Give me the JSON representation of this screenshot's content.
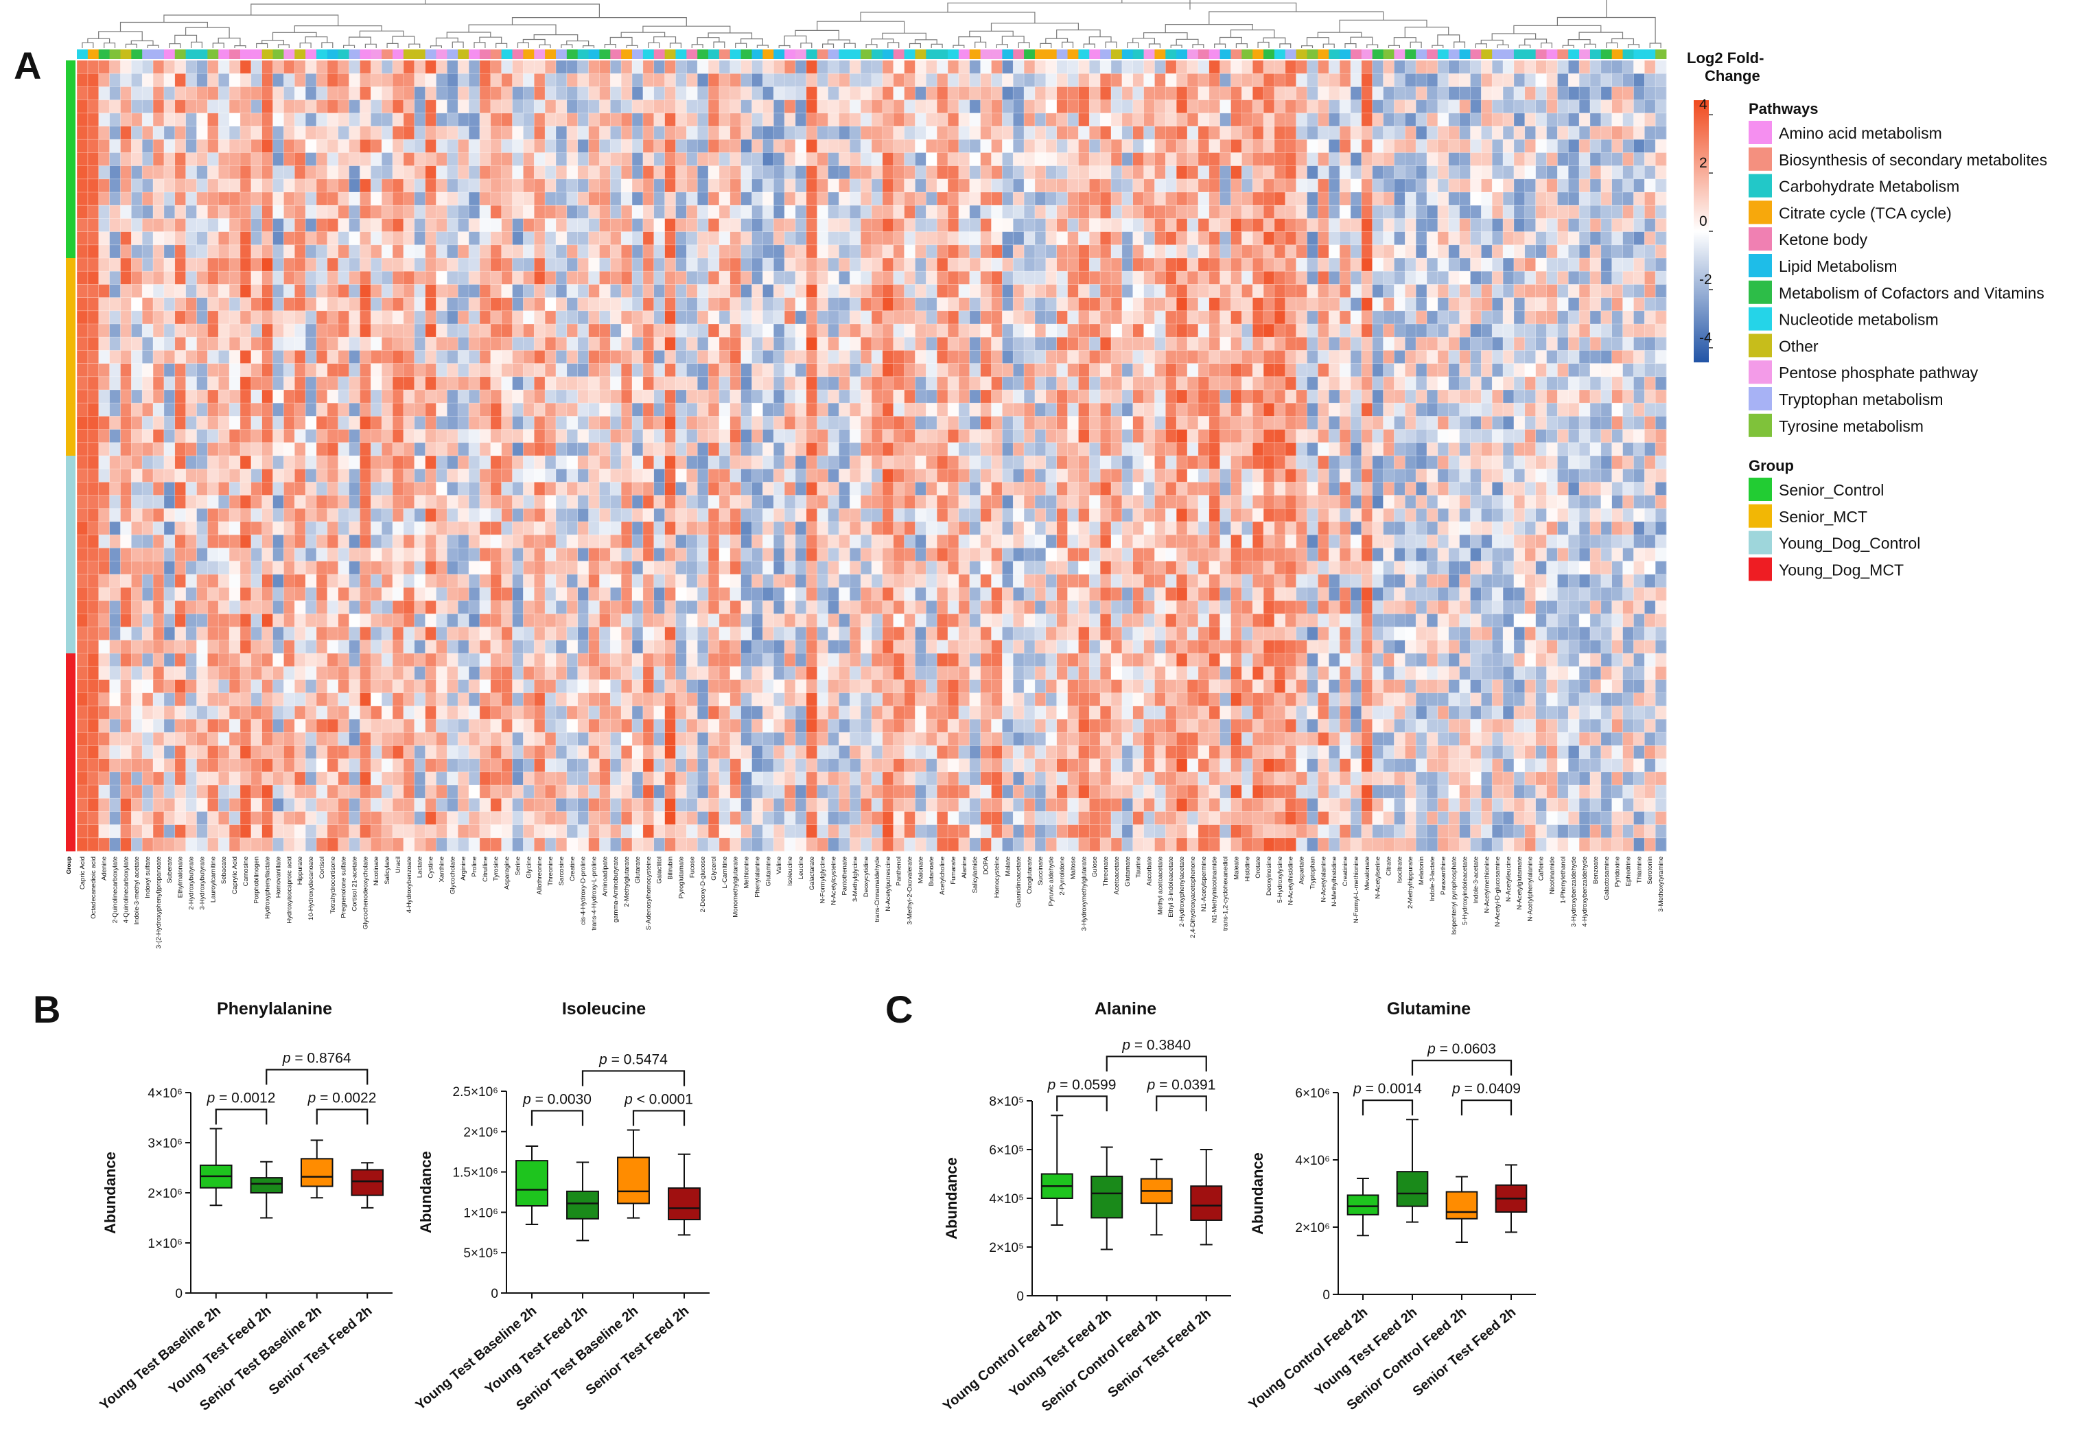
{
  "panel_labels": [
    "A",
    "B",
    "C"
  ],
  "chart_data": [
    {
      "type": "heatmap",
      "panel": "A",
      "colorbar": {
        "title": "Log2 Fold-Change",
        "ticks": [
          4,
          2,
          0,
          -2,
          -4
        ],
        "range": [
          -4.5,
          4.5
        ],
        "low_color": "#2154a6",
        "mid_color": "#ffffff",
        "high_color": "#f04a1e"
      },
      "rows_per_group": 15,
      "group_row_label": "Group",
      "groups": [
        {
          "name": "Senior_Control",
          "color": "#22cc33"
        },
        {
          "name": "Senior_MCT",
          "color": "#f2b705"
        },
        {
          "name": "Young_Dog_Control",
          "color": "#9ed6db"
        },
        {
          "name": "Young_Dog_MCT",
          "color": "#ee1d23"
        }
      ],
      "pathways_title": "Pathways",
      "group_title": "Group",
      "pathways": [
        {
          "name": "Amino acid metabolism",
          "color": "#f58ff0"
        },
        {
          "name": "Biosynthesis of secondary metabolites",
          "color": "#f4907f"
        },
        {
          "name": "Carbohydrate Metabolism",
          "color": "#22c8c8"
        },
        {
          "name": "Citrate cycle (TCA cycle)",
          "color": "#f7a80c"
        },
        {
          "name": "Ketone body",
          "color": "#f080b2"
        },
        {
          "name": "Lipid Metabolism",
          "color": "#1ebde8"
        },
        {
          "name": "Metabolism of Cofactors and Vitamins",
          "color": "#2dbd48"
        },
        {
          "name": "Nucleotide metabolism",
          "color": "#25d4e8"
        },
        {
          "name": "Other",
          "color": "#c7bd1b"
        },
        {
          "name": "Pentose phosphate pathway",
          "color": "#f39be8"
        },
        {
          "name": "Tryptophan metabolism",
          "color": "#a7b2f5"
        },
        {
          "name": "Tyrosine metabolism",
          "color": "#7fc23a"
        }
      ],
      "metabolites": [
        "Capric Acid",
        "Octadecanedioic acid",
        "Adenine",
        "2-Quinolinecarboxylate",
        "4-Quinolinecarboxylate",
        "Indole-3-methyl acetate",
        "Indoxyl sulfate",
        "3-(2-Hydroxyphenyl)propanoate",
        "Suberate",
        "Ethylmalonate",
        "2-Hydroxybutyrate",
        "3-Hydroxybutyrate",
        "Lauroylcarnitine",
        "Sebacate",
        "Caprylic Acid",
        "Carnosine",
        "Porphobilinogen",
        "Hydroxyphenyllactate",
        "Homovanillate",
        "Hydroxyisocaproic acid",
        "Hippurate",
        "10-Hydroxydecanoate",
        "Cortisol",
        "Tetrahydrocortisone",
        "Pregnenolone sulfate",
        "Cortisol 21-acetate",
        "Glycochenodeoxycholate",
        "Nicotinate",
        "Salicylate",
        "Uracil",
        "4-Hydroxybenzoate",
        "Lactate",
        "Cystine",
        "Xanthine",
        "Glycocholate",
        "Arginine",
        "Proline",
        "Citrulline",
        "Tyrosine",
        "Asparagine",
        "Serine",
        "Glycine",
        "Allothreonine",
        "Threonine",
        "Sarcosine",
        "Creatine",
        "cis-4-Hydroxy-D-proline",
        "trans-4-Hydroxy-L-proline",
        "Aminoadipate",
        "gamma-Aminobutyrate",
        "2-Methylglutarate",
        "Glutarate",
        "S-Adenosylhomocysteine",
        "Galactitol",
        "Bilirubin",
        "Pyroglutamate",
        "Fucose",
        "2-Deoxy-D-glucose",
        "Glycerol",
        "L-Carnitine",
        "Monomethylglutarate",
        "Methionine",
        "Phenylalanine",
        "Glutamine",
        "Valine",
        "Isoleucine",
        "Leucine",
        "Galactarate",
        "N-Formylglycine",
        "N-Acetylcysteine",
        "Pantothenate",
        "3-Methylglycine",
        "Deoxycytidine",
        "trans-Cinnamaldehyde",
        "N-Acetylputrescine",
        "Panthenol",
        "3-Methyl-2-Oxovalerate",
        "Malonate",
        "Butanoate",
        "Acetylcholine",
        "Fumarate",
        "Alanine",
        "Salicylamide",
        "DOPA",
        "Homocysteine",
        "Malate",
        "Guanidinoacetate",
        "Oxoglutarate",
        "Succinate",
        "Pyruvic aldehyde",
        "2-Pyrrolidone",
        "Maltose",
        "3-Hydroxymethylglutarate",
        "Gulose",
        "Threonate",
        "Acetoacetate",
        "Glutamate",
        "Taurine",
        "Ascorbate",
        "Methyl acetoacetate",
        "Ethyl 3-indoleacetate",
        "2-Hydroxyphenylacetate",
        "2,4-Dihydroxyacetophenone",
        "N1-Acetylspermine",
        "N1-Methylnicotinamide",
        "trans-1,2-cyclohexanediol",
        "Maleate",
        "Histidine",
        "Orotate",
        "Deoxyinosine",
        "5-Hydroxylysine",
        "N-Acetylhistidine",
        "Aspartate",
        "Tryptophan",
        "N-Acetylalanine",
        "N-Methylhistidine",
        "Creatinine",
        "N-Formyl-L-methionine",
        "Mevalonate",
        "N-Acetylserine",
        "Citrate",
        "Isocitrate",
        "2-Methylhippurate",
        "Melatonin",
        "Indole-3-lactate",
        "Paraxanthine",
        "Isopentenyl pyrophosphate",
        "5-Hydroxyindoleacetate",
        "Indole-3-acetate",
        "N-Acetylmethionine",
        "N-Acetyl-D-glucosamine",
        "N-Acetylleucine",
        "N-Acetylglutamate",
        "N-Acetylphenylalanine",
        "Caffeine",
        "Nicotinamide",
        "1-Phenylethanol",
        "3-Hydroxybenzaldehyde",
        "4-Hydroxybenzaldehyde",
        "Benzoate",
        "Galactosamine",
        "Pyridoxine",
        "Ephedrine",
        "Thiamine",
        "Serotonin",
        "3-Methoxytyramine"
      ]
    },
    {
      "type": "box",
      "panel": "B",
      "title": "Phenylalanine",
      "ylabel": "Abundance",
      "ylim": [
        0,
        4000000
      ],
      "y_ticks": [
        {
          "v": 0,
          "t": "0"
        },
        {
          "v": 1000000,
          "t": "1×10⁶"
        },
        {
          "v": 2000000,
          "t": "2×10⁶"
        },
        {
          "v": 3000000,
          "t": "3×10⁶"
        },
        {
          "v": 4000000,
          "t": "4×10⁶"
        }
      ],
      "categories": [
        "Young Test Baseline 2h",
        "Young Test Feed 2h",
        "Senior Test Baseline 2h",
        "Senior Test Feed 2h"
      ],
      "colors": [
        "#1ec41e",
        "#1a8a1a",
        "#ff8c00",
        "#a01010"
      ],
      "boxes": [
        {
          "min": 1750000,
          "q1": 2100000,
          "median": 2330000,
          "q3": 2550000,
          "max": 3280000
        },
        {
          "min": 1500000,
          "q1": 2000000,
          "median": 2180000,
          "q3": 2300000,
          "max": 2620000
        },
        {
          "min": 1900000,
          "q1": 2130000,
          "median": 2320000,
          "q3": 2680000,
          "max": 3050000
        },
        {
          "min": 1700000,
          "q1": 1950000,
          "median": 2230000,
          "q3": 2460000,
          "max": 2600000
        }
      ],
      "comparisons": [
        {
          "a": 0,
          "b": 1,
          "label": "p = 0.0012",
          "level": 1
        },
        {
          "a": 2,
          "b": 3,
          "label": "p = 0.0022",
          "level": 1
        },
        {
          "a": 1,
          "b": 3,
          "label": "p = 0.8764",
          "level": 2
        }
      ]
    },
    {
      "type": "box",
      "panel": "B",
      "title": "Isoleucine",
      "ylabel": "Abundance",
      "ylim": [
        0,
        2500000
      ],
      "y_ticks": [
        {
          "v": 0,
          "t": "0"
        },
        {
          "v": 500000,
          "t": "5×10⁵"
        },
        {
          "v": 1000000,
          "t": "1×10⁶"
        },
        {
          "v": 1500000,
          "t": "1.5×10⁶"
        },
        {
          "v": 2000000,
          "t": "2×10⁶"
        },
        {
          "v": 2500000,
          "t": "2.5×10⁶"
        }
      ],
      "categories": [
        "Young Test Baseline 2h",
        "Young Test Feed 2h",
        "Senior Test Baseline 2h",
        "Senior Test Feed 2h"
      ],
      "colors": [
        "#1ec41e",
        "#1a8a1a",
        "#ff8c00",
        "#a01010"
      ],
      "boxes": [
        {
          "min": 850000,
          "q1": 1080000,
          "median": 1280000,
          "q3": 1640000,
          "max": 1820000
        },
        {
          "min": 650000,
          "q1": 920000,
          "median": 1110000,
          "q3": 1260000,
          "max": 1620000
        },
        {
          "min": 930000,
          "q1": 1110000,
          "median": 1260000,
          "q3": 1680000,
          "max": 2020000
        },
        {
          "min": 720000,
          "q1": 910000,
          "median": 1050000,
          "q3": 1300000,
          "max": 1720000
        }
      ],
      "comparisons": [
        {
          "a": 0,
          "b": 1,
          "label": "p = 0.0030",
          "level": 1
        },
        {
          "a": 2,
          "b": 3,
          "label": "p < 0.0001",
          "level": 1
        },
        {
          "a": 1,
          "b": 3,
          "label": "p = 0.5474",
          "level": 2
        }
      ]
    },
    {
      "type": "box",
      "panel": "C",
      "title": "Alanine",
      "ylabel": "Abundance",
      "ylim": [
        0,
        800000
      ],
      "y_ticks": [
        {
          "v": 0,
          "t": "0"
        },
        {
          "v": 200000,
          "t": "2×10⁵"
        },
        {
          "v": 400000,
          "t": "4×10⁵"
        },
        {
          "v": 600000,
          "t": "6×10⁵"
        },
        {
          "v": 800000,
          "t": "8×10⁵"
        }
      ],
      "categories": [
        "Young Control Feed 2h",
        "Young Test Feed 2h",
        "Senior Control Feed 2h",
        "Senior Test Feed 2h"
      ],
      "colors": [
        "#1ec41e",
        "#1a8a1a",
        "#ff8c00",
        "#a01010"
      ],
      "boxes": [
        {
          "min": 290000,
          "q1": 400000,
          "median": 450000,
          "q3": 500000,
          "max": 740000
        },
        {
          "min": 190000,
          "q1": 320000,
          "median": 420000,
          "q3": 490000,
          "max": 610000
        },
        {
          "min": 250000,
          "q1": 380000,
          "median": 430000,
          "q3": 480000,
          "max": 560000
        },
        {
          "min": 210000,
          "q1": 310000,
          "median": 370000,
          "q3": 450000,
          "max": 600000
        }
      ],
      "comparisons": [
        {
          "a": 0,
          "b": 1,
          "label": "p = 0.0599",
          "level": 1
        },
        {
          "a": 2,
          "b": 3,
          "label": "p = 0.0391",
          "level": 1
        },
        {
          "a": 1,
          "b": 3,
          "label": "p = 0.3840",
          "level": 2
        }
      ]
    },
    {
      "type": "box",
      "panel": "C",
      "title": "Glutamine",
      "ylabel": "Abundance",
      "ylim": [
        0,
        6000000
      ],
      "y_ticks": [
        {
          "v": 0,
          "t": "0"
        },
        {
          "v": 2000000,
          "t": "2×10⁶"
        },
        {
          "v": 4000000,
          "t": "4×10⁶"
        },
        {
          "v": 6000000,
          "t": "6×10⁶"
        }
      ],
      "categories": [
        "Young Control Feed 2h",
        "Young Test Feed 2h",
        "Senior Control Feed 2h",
        "Senior Test Feed 2h"
      ],
      "colors": [
        "#1ec41e",
        "#1a8a1a",
        "#ff8c00",
        "#a01010"
      ],
      "boxes": [
        {
          "min": 1750000,
          "q1": 2370000,
          "median": 2620000,
          "q3": 2950000,
          "max": 3450000
        },
        {
          "min": 2150000,
          "q1": 2620000,
          "median": 3000000,
          "q3": 3650000,
          "max": 5200000
        },
        {
          "min": 1550000,
          "q1": 2250000,
          "median": 2450000,
          "q3": 3050000,
          "max": 3500000
        },
        {
          "min": 1850000,
          "q1": 2450000,
          "median": 2850000,
          "q3": 3250000,
          "max": 3850000
        }
      ],
      "comparisons": [
        {
          "a": 0,
          "b": 1,
          "label": "p = 0.0014",
          "level": 1
        },
        {
          "a": 2,
          "b": 3,
          "label": "p = 0.0409",
          "level": 1
        },
        {
          "a": 1,
          "b": 3,
          "label": "p = 0.0603",
          "level": 2
        }
      ]
    }
  ]
}
